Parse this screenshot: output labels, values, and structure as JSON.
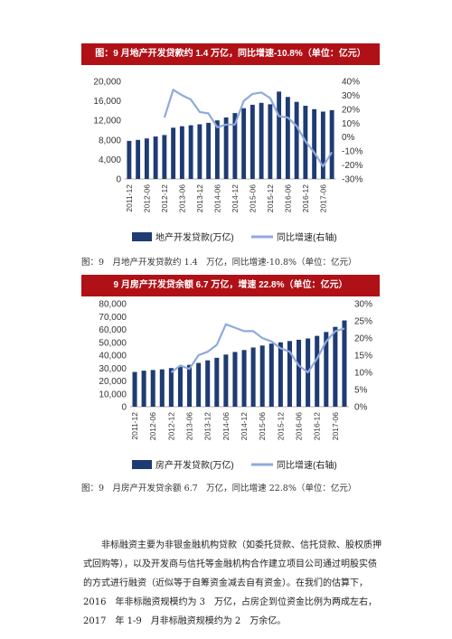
{
  "charts": [
    {
      "header": "图：9 月地产开发贷款约 1.4 万亿，同比增速-10.8%（单位：亿元）",
      "caption": "图：9　月地产开发贷款约 1.4　万亿，同比增速-10.8%（单位：亿元）",
      "legend": {
        "bar": "地产开发贷款(万亿)",
        "line": "同比增速(右轴)"
      },
      "colors": {
        "bar": "#1f3b73",
        "line": "#8faadc",
        "header_bg": "#b01117"
      }
    },
    {
      "header": "9 月房产开发贷余额 6.7 万亿，增速 22.8%（单位：亿元）",
      "caption": "图：9　月房产开发贷余额 6.7　万亿，同比增速 22.8%（单位：亿元）",
      "legend": {
        "bar": "房产开发贷款(万亿)",
        "line": "同比增速(右轴)"
      },
      "colors": {
        "bar": "#1f3b73",
        "line": "#8faadc",
        "header_bg": "#b01117"
      }
    }
  ],
  "paragraph": "非标融资主要为非银金融机构贷款（如委托贷款、信托贷款、股权质押式回购等），以及开发商与信托等金融机构合作建立项目公司通过明股实债的方式进行融资（近似等于自筹资金减去自有资金）。在我们的估算下，2016　年非标融资规模约为 3　万亿，占房企到位资金比例为两成左右，2017　年 1-9　月非标融资规模约为 2　万余亿。",
  "chart_data": [
    {
      "type": "bar",
      "title": "图：9 月地产开发贷款约 1.4 万亿，同比增速-10.8%（单位：亿元）",
      "categories": [
        "2011-12",
        "2012-03",
        "2012-06",
        "2012-09",
        "2012-12",
        "2013-03",
        "2013-06",
        "2013-09",
        "2013-12",
        "2014-03",
        "2014-06",
        "2014-09",
        "2014-12",
        "2015-03",
        "2015-06",
        "2015-09",
        "2015-12",
        "2016-03",
        "2016-06",
        "2016-09",
        "2016-12",
        "2017-03",
        "2017-06",
        "2017-09"
      ],
      "x_tick_labels": [
        "2011-12",
        "2012-06",
        "2012-12",
        "2013-06",
        "2013-12",
        "2014-06",
        "2014-12",
        "2015-06",
        "2015-12",
        "2016-06",
        "2016-12",
        "2017-06"
      ],
      "series": [
        {
          "name": "地产开发贷款(万亿)",
          "type": "bar",
          "axis": "left",
          "values": [
            7800,
            8000,
            8300,
            8700,
            9000,
            10500,
            10800,
            11000,
            11200,
            11500,
            12000,
            12600,
            13500,
            14500,
            15200,
            15600,
            15300,
            17900,
            16800,
            15800,
            15000,
            14300,
            13800,
            14100
          ]
        },
        {
          "name": "同比增速(右轴)",
          "type": "line",
          "axis": "right",
          "values": [
            null,
            null,
            null,
            null,
            14,
            34,
            30,
            27,
            18,
            17,
            7,
            9,
            9,
            26,
            31,
            32,
            28,
            15,
            14,
            8,
            -3,
            -11,
            -21,
            -10.8
          ]
        }
      ],
      "y_left": {
        "ticks": [
          0,
          4000,
          8000,
          12000,
          16000,
          20000
        ],
        "tick_labels": [
          "0",
          "4,000",
          "8,000",
          "12,000",
          "16,000",
          "20,000"
        ],
        "range": [
          0,
          20000
        ]
      },
      "y_right": {
        "ticks": [
          -30,
          -20,
          -10,
          0,
          10,
          20,
          30,
          40
        ],
        "tick_labels": [
          "-30%",
          "-20%",
          "-10%",
          "0%",
          "10%",
          "20%",
          "30%",
          "40%"
        ],
        "range": [
          -30,
          40
        ]
      },
      "legend_position": "bottom"
    },
    {
      "type": "bar",
      "title": "9 月房产开发贷余额 6.7 万亿，增速 22.8%（单位：亿元）",
      "categories": [
        "2011-12",
        "2012-03",
        "2012-06",
        "2012-09",
        "2012-12",
        "2013-03",
        "2013-06",
        "2013-09",
        "2013-12",
        "2014-03",
        "2014-06",
        "2014-09",
        "2014-12",
        "2015-03",
        "2015-06",
        "2015-09",
        "2015-12",
        "2016-03",
        "2016-06",
        "2016-09",
        "2016-12",
        "2017-03",
        "2017-06",
        "2017-09"
      ],
      "x_tick_labels": [
        "2011-12",
        "2012-06",
        "2012-12",
        "2013-06",
        "2013-12",
        "2014-06",
        "2014-12",
        "2015-06",
        "2015-12",
        "2016-06",
        "2016-12",
        "2017-06"
      ],
      "series": [
        {
          "name": "房产开发贷款(万亿)",
          "type": "bar",
          "axis": "left",
          "values": [
            27000,
            28000,
            28500,
            29000,
            30000,
            31000,
            32500,
            34000,
            36000,
            38000,
            40500,
            42500,
            44000,
            46000,
            47500,
            49000,
            50000,
            51000,
            52000,
            53000,
            55000,
            58000,
            62000,
            67000
          ]
        },
        {
          "name": "同比增速(右轴)",
          "type": "line",
          "axis": "right",
          "values": [
            null,
            null,
            null,
            null,
            10,
            12,
            11,
            15,
            16,
            18,
            24,
            23,
            22,
            22,
            20,
            19,
            17,
            16,
            12,
            10,
            14,
            19,
            22,
            22.8
          ]
        }
      ],
      "y_left": {
        "ticks": [
          0,
          10000,
          20000,
          30000,
          40000,
          50000,
          60000,
          70000,
          80000
        ],
        "tick_labels": [
          "0",
          "10,000",
          "20,000",
          "30,000",
          "40,000",
          "50,000",
          "60,000",
          "70,000",
          "80,000"
        ],
        "range": [
          0,
          80000
        ]
      },
      "y_right": {
        "ticks": [
          0,
          5,
          10,
          15,
          20,
          25,
          30
        ],
        "tick_labels": [
          "0%",
          "5%",
          "10%",
          "15%",
          "20%",
          "25%",
          "30%"
        ],
        "range": [
          0,
          30
        ]
      },
      "legend_position": "bottom"
    }
  ]
}
